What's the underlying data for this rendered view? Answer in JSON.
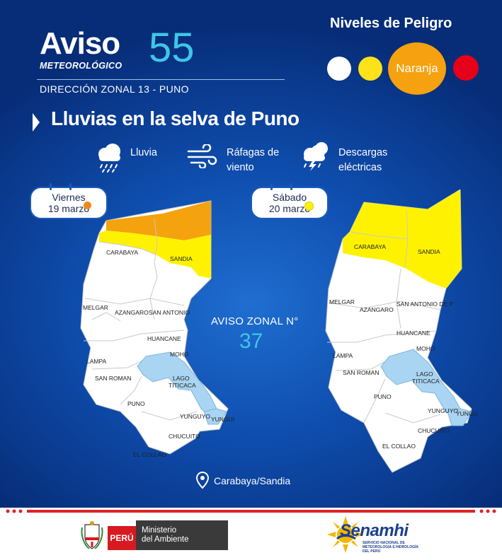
{
  "header": {
    "aviso_word": "Aviso",
    "meteo_word": "METEOROLÓGICO",
    "aviso_number": "55",
    "direccion": "DIRECCIÓN ZONAL 13 - PUNO"
  },
  "niveles": {
    "title": "Niveles de Peligro",
    "active_label": "Naranja",
    "colors": {
      "white": "#ffffff",
      "yellow": "#ffe21a",
      "orange": "#f6a10f",
      "red": "#e6001a"
    }
  },
  "headline": "Lluvias en la selva de Puno",
  "hazards": [
    {
      "icon": "rain-cloud-icon",
      "line1": "Lluvia",
      "line2": ""
    },
    {
      "icon": "wind-gust-icon",
      "line1": "Ráfagas de",
      "line2": "viento"
    },
    {
      "icon": "lightning-cloud-icon",
      "line1": "Descargas",
      "line2": "eléctricas"
    }
  ],
  "maps": [
    {
      "day": "Viernes",
      "date": "19 marzo",
      "alert_color": "#f5a20f",
      "secondary_color": "#fff200"
    },
    {
      "day": "Sábado",
      "date": "20 marzo",
      "alert_color": "#fff200",
      "secondary_color": "#fff200"
    }
  ],
  "provinces": {
    "carabaya": "CARABAYA",
    "sandia": "SANDIA",
    "melgar": "MELGAR",
    "azangaro": "AZANGARO",
    "san_antonio_left": "SAN ANTONIO",
    "san_antonio_right": "SAN ANTONIO DE P",
    "huancane": "HUANCANE",
    "moho": "MOHO",
    "lampa": "LAMPA",
    "san_roman": "SAN ROMAN",
    "lago_1": "LAGO",
    "lago_2": "TITICACA",
    "puno": "PUNO",
    "yunguyo": "YUNGUYO",
    "yungu_left": "YUNGUI",
    "yungu_right": "YUNGU",
    "chucuito": "CHUCUITO",
    "el_collao": "EL COLLAO"
  },
  "zonal": {
    "label": "AVISO ZONAL N°",
    "number": "37"
  },
  "location": "Carabaya/Sandia",
  "footer": {
    "peru": "PERÚ",
    "ministerio_1": "Ministerio",
    "ministerio_2": "del Ambiente",
    "senamhi": "Senamhi",
    "senamhi_sub": "SERVICIO NACIONAL DE METEOROLOGÍA E HIDROLOGÍA DEL PERÚ"
  }
}
